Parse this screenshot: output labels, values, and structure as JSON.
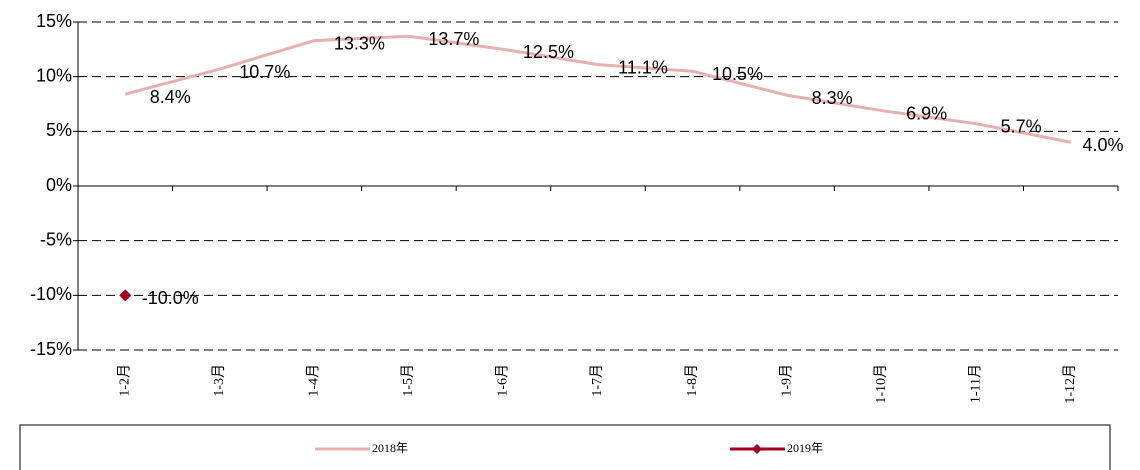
{
  "chart_data": {
    "type": "line",
    "categories": [
      "1-2月",
      "1-3月",
      "1-4月",
      "1-5月",
      "1-6月",
      "1-7月",
      "1-8月",
      "1-9月",
      "1-10月",
      "1-11月",
      "1-12月"
    ],
    "series": [
      {
        "name": "2018年",
        "color": "#e6b0b0",
        "values": [
          8.4,
          10.7,
          13.3,
          13.7,
          12.5,
          11.1,
          10.5,
          8.3,
          6.9,
          5.7,
          4.0
        ],
        "value_labels": [
          "8.4%",
          "10.7%",
          "13.3%",
          "13.7%",
          "12.5%",
          "11.1%",
          "10.5%",
          "8.3%",
          "6.9%",
          "5.7%",
          "4.0%"
        ]
      },
      {
        "name": "2019年",
        "color": "#a50021",
        "marker": "diamond",
        "values": [
          -10.0,
          null,
          null,
          null,
          null,
          null,
          null,
          null,
          null,
          null,
          null
        ],
        "value_labels": [
          "-10.0%",
          null,
          null,
          null,
          null,
          null,
          null,
          null,
          null,
          null,
          null
        ]
      }
    ],
    "ylim": [
      -15,
      15
    ],
    "yticks": [
      {
        "value": -15,
        "label": "-15%"
      },
      {
        "value": -10,
        "label": "-10%"
      },
      {
        "value": -5,
        "label": "-5%"
      },
      {
        "value": 0,
        "label": "0%"
      },
      {
        "value": 5,
        "label": "5%"
      },
      {
        "value": 10,
        "label": "10%"
      },
      {
        "value": 15,
        "label": "15%"
      }
    ],
    "grid": true,
    "legend": "bottom"
  }
}
